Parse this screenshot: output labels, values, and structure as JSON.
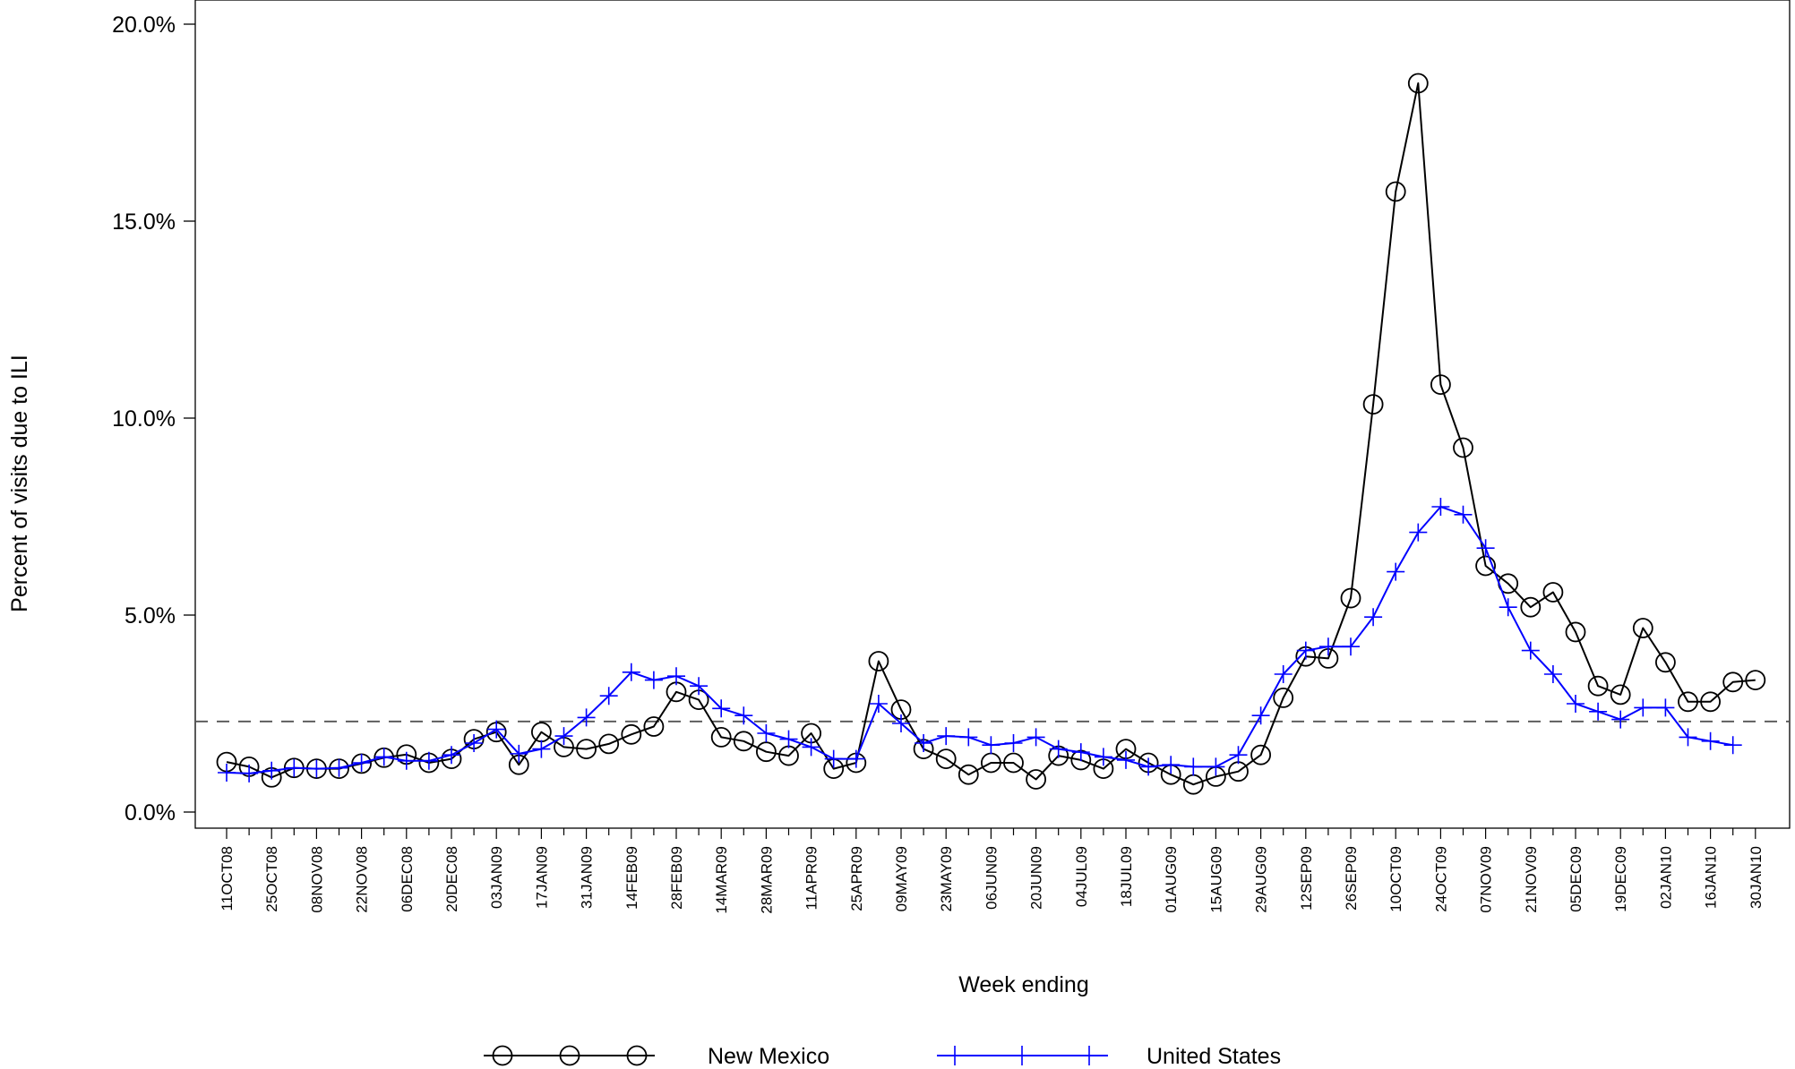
{
  "chart_data": {
    "type": "line",
    "ylabel": "Percent of visits due to ILI",
    "xlabel": "Week ending",
    "ylim": [
      0,
      20
    ],
    "y_ticks": [
      "0.0%",
      "5.0%",
      "10.0%",
      "15.0%",
      "20.0%"
    ],
    "y_tick_values": [
      0,
      5,
      10,
      15,
      20
    ],
    "x_tick_labels": [
      "11OCT08",
      "25OCT08",
      "08NOV08",
      "22NOV08",
      "06DEC08",
      "20DEC08",
      "03JAN09",
      "17JAN09",
      "31JAN09",
      "14FEB09",
      "28FEB09",
      "14MAR09",
      "28MAR09",
      "11APR09",
      "25APR09",
      "09MAY09",
      "23MAY09",
      "06JUN09",
      "20JUN09",
      "04JUL09",
      "18JUL09",
      "01AUG09",
      "15AUG09",
      "29AUG09",
      "12SEP09",
      "26SEP09",
      "10OCT09",
      "24OCT09",
      "07NOV09",
      "21NOV09",
      "05DEC09",
      "19DEC09",
      "02JAN10",
      "16JAN10",
      "30JAN10"
    ],
    "baseline": 2.3,
    "grid": false,
    "legend_position": "bottom",
    "series": [
      {
        "name": "New Mexico",
        "color": "#000000",
        "marker": "circle",
        "start_week": "11OCT08",
        "values": [
          1.27,
          1.15,
          0.88,
          1.12,
          1.1,
          1.1,
          1.23,
          1.38,
          1.46,
          1.25,
          1.35,
          1.85,
          2.03,
          1.2,
          2.03,
          1.65,
          1.6,
          1.73,
          1.97,
          2.17,
          3.05,
          2.85,
          1.9,
          1.8,
          1.53,
          1.43,
          2.0,
          1.1,
          1.25,
          3.83,
          2.6,
          1.6,
          1.35,
          0.95,
          1.25,
          1.25,
          0.83,
          1.43,
          1.32,
          1.1,
          1.6,
          1.25,
          0.95,
          0.7,
          0.9,
          1.03,
          1.45,
          2.9,
          3.95,
          3.9,
          5.43,
          10.35,
          15.75,
          18.5,
          10.85,
          9.25,
          6.25,
          5.8,
          5.2,
          5.58,
          4.57,
          3.2,
          2.98,
          4.67,
          3.8,
          2.8,
          2.8,
          3.3,
          3.35
        ]
      },
      {
        "name": "United States",
        "color": "#0000ff",
        "marker": "plus",
        "start_week": "11OCT08",
        "values": [
          1.0,
          0.98,
          1.05,
          1.12,
          1.1,
          1.12,
          1.25,
          1.4,
          1.3,
          1.3,
          1.45,
          1.75,
          2.1,
          1.48,
          1.6,
          1.93,
          2.4,
          2.95,
          3.55,
          3.35,
          3.45,
          3.2,
          2.63,
          2.45,
          2.0,
          1.85,
          1.65,
          1.35,
          1.35,
          2.75,
          2.25,
          1.75,
          1.93,
          1.9,
          1.7,
          1.75,
          1.9,
          1.6,
          1.52,
          1.4,
          1.32,
          1.15,
          1.2,
          1.15,
          1.15,
          1.45,
          2.45,
          3.5,
          4.1,
          4.2,
          4.2,
          4.95,
          6.1,
          7.1,
          7.75,
          7.55,
          6.7,
          5.2,
          4.1,
          3.5,
          2.75,
          2.55,
          2.35,
          2.65,
          2.65,
          1.9,
          1.8,
          1.7
        ]
      }
    ]
  }
}
